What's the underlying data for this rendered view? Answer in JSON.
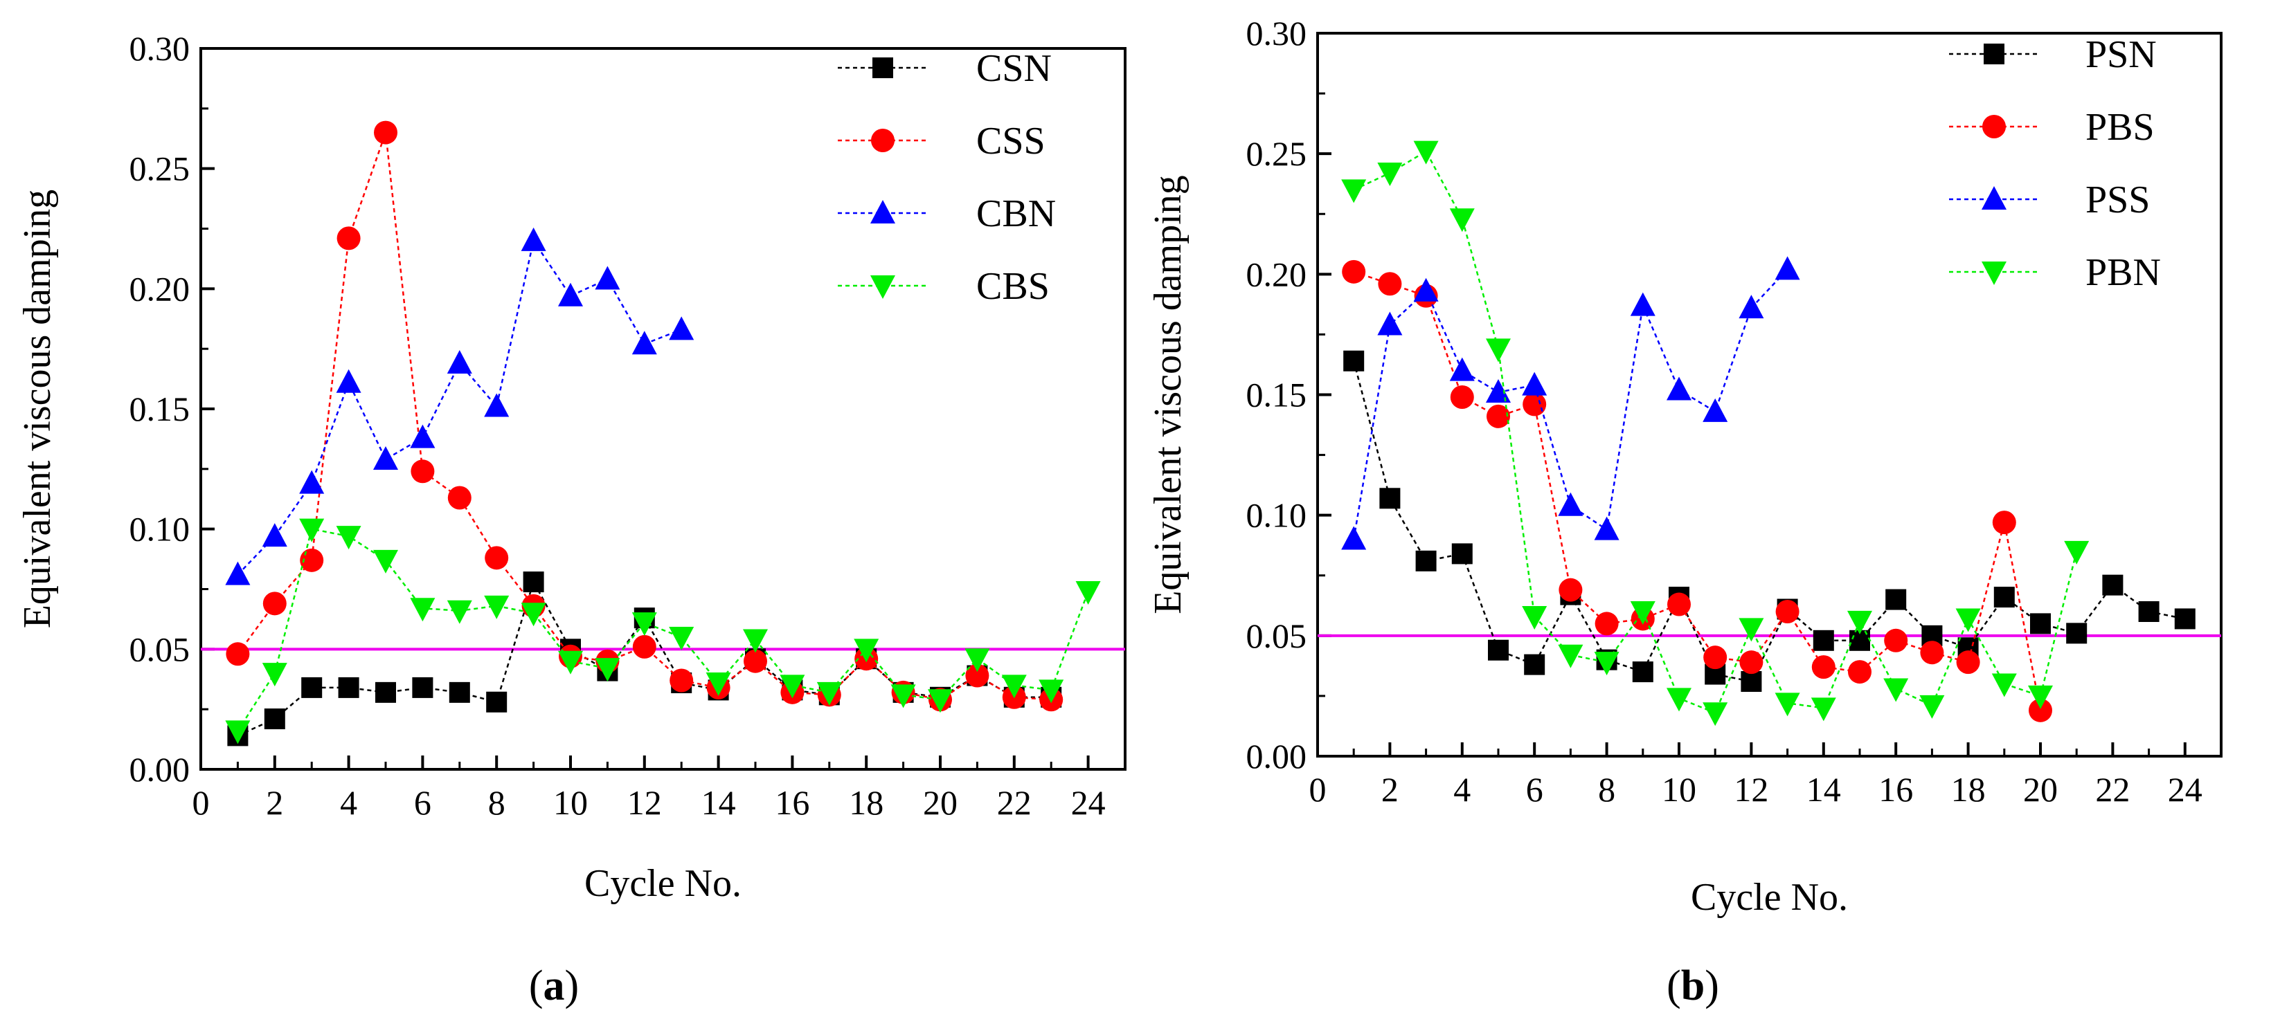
{
  "chart_data": [
    {
      "id": "a",
      "type": "line",
      "caption": {
        "open": "(",
        "letter": "a",
        "close": ")"
      },
      "xlabel": "Cycle No.",
      "ylabel": "Equivalent viscous damping",
      "xlim": [
        0,
        25
      ],
      "ylim": [
        0,
        0.3
      ],
      "xticks": [
        "0",
        "2",
        "4",
        "6",
        "8",
        "10",
        "12",
        "14",
        "16",
        "18",
        "20",
        "22",
        "24"
      ],
      "yticks": [
        "0.00",
        "0.05",
        "0.10",
        "0.15",
        "0.20",
        "0.25",
        "0.30"
      ],
      "reference_line": {
        "y": 0.05,
        "color": "#ee00ee"
      },
      "legend_position": "top-right",
      "series": [
        {
          "name": "CSN",
          "color": "#000000",
          "marker": "square",
          "x": [
            1,
            2,
            3,
            4,
            5,
            6,
            7,
            8,
            9,
            10,
            11,
            12,
            13,
            14,
            15,
            16,
            17,
            18,
            19,
            20,
            21,
            22,
            23
          ],
          "y": [
            0.014,
            0.021,
            0.034,
            0.034,
            0.032,
            0.034,
            0.032,
            0.028,
            0.078,
            0.05,
            0.041,
            0.063,
            0.036,
            0.033,
            0.046,
            0.033,
            0.031,
            0.046,
            0.032,
            0.03,
            0.039,
            0.03,
            0.03
          ]
        },
        {
          "name": "CSS",
          "color": "#ff0000",
          "marker": "circle",
          "x": [
            1,
            2,
            3,
            4,
            5,
            6,
            7,
            8,
            9,
            10,
            11,
            12,
            13,
            14,
            15,
            16,
            17,
            18,
            19,
            20,
            21,
            22,
            23
          ],
          "y": [
            0.048,
            0.069,
            0.087,
            0.221,
            0.265,
            0.124,
            0.113,
            0.088,
            0.068,
            0.047,
            0.045,
            0.051,
            0.037,
            0.034,
            0.045,
            0.032,
            0.031,
            0.046,
            0.032,
            0.029,
            0.039,
            0.03,
            0.029
          ]
        },
        {
          "name": "CBN",
          "color": "#0000ff",
          "marker": "triangle-up",
          "x": [
            1,
            2,
            3,
            4,
            5,
            6,
            7,
            8,
            9,
            10,
            11,
            12,
            13
          ],
          "y": [
            0.081,
            0.097,
            0.119,
            0.161,
            0.129,
            0.138,
            0.169,
            0.151,
            0.22,
            0.197,
            0.204,
            0.177,
            0.183
          ]
        },
        {
          "name": "CBS",
          "color": "#00ee00",
          "marker": "triangle-down",
          "x": [
            1,
            2,
            3,
            4,
            5,
            6,
            7,
            8,
            9,
            10,
            11,
            12,
            13,
            14,
            15,
            16,
            17,
            18,
            19,
            20,
            21,
            22,
            23,
            24
          ],
          "y": [
            0.016,
            0.04,
            0.1,
            0.097,
            0.087,
            0.067,
            0.066,
            0.068,
            0.065,
            0.045,
            0.042,
            0.061,
            0.055,
            0.036,
            0.054,
            0.035,
            0.032,
            0.05,
            0.031,
            0.029,
            0.046,
            0.035,
            0.033,
            0.074
          ]
        }
      ]
    },
    {
      "id": "b",
      "type": "line",
      "caption": {
        "open": "(",
        "letter": "b",
        "close": ")"
      },
      "xlabel": "Cycle No.",
      "ylabel": "Equivalent viscous damping",
      "xlim": [
        0,
        25
      ],
      "ylim": [
        0,
        0.3
      ],
      "xticks": [
        "0",
        "2",
        "4",
        "6",
        "8",
        "10",
        "12",
        "14",
        "16",
        "18",
        "20",
        "22",
        "24"
      ],
      "yticks": [
        "0.00",
        "0.05",
        "0.10",
        "0.15",
        "0.20",
        "0.25",
        "0.30"
      ],
      "reference_line": {
        "y": 0.05,
        "color": "#ee00ee"
      },
      "legend_position": "top-right",
      "series": [
        {
          "name": "PSN",
          "color": "#000000",
          "marker": "square",
          "x": [
            1,
            2,
            3,
            4,
            5,
            6,
            7,
            8,
            9,
            10,
            11,
            12,
            13,
            14,
            15,
            16,
            17,
            18,
            19,
            20,
            21,
            22,
            23,
            24
          ],
          "y": [
            0.164,
            0.107,
            0.081,
            0.084,
            0.044,
            0.038,
            0.067,
            0.04,
            0.035,
            0.066,
            0.034,
            0.031,
            0.061,
            0.048,
            0.048,
            0.065,
            0.05,
            0.045,
            0.066,
            0.055,
            0.051,
            0.071,
            0.06,
            0.057
          ]
        },
        {
          "name": "PBS",
          "color": "#ff0000",
          "marker": "circle",
          "x": [
            1,
            2,
            3,
            4,
            5,
            6,
            7,
            8,
            9,
            10,
            11,
            12,
            13,
            14,
            15,
            16,
            17,
            18,
            19,
            20
          ],
          "y": [
            0.201,
            0.196,
            0.191,
            0.149,
            0.141,
            0.146,
            0.069,
            0.055,
            0.057,
            0.063,
            0.041,
            0.039,
            0.06,
            0.037,
            0.035,
            0.048,
            0.043,
            0.039,
            0.097,
            0.019
          ]
        },
        {
          "name": "PSS",
          "color": "#0000ff",
          "marker": "triangle-up",
          "x": [
            1,
            2,
            3,
            4,
            5,
            6,
            7,
            8,
            9,
            10,
            11,
            12,
            13
          ],
          "y": [
            0.09,
            0.179,
            0.193,
            0.16,
            0.151,
            0.154,
            0.104,
            0.094,
            0.187,
            0.152,
            0.143,
            0.186,
            0.202
          ]
        },
        {
          "name": "PBN",
          "color": "#00ee00",
          "marker": "triangle-down",
          "x": [
            1,
            2,
            3,
            4,
            5,
            6,
            7,
            8,
            9,
            10,
            11,
            12,
            13,
            14,
            15,
            16,
            17,
            18,
            19,
            20,
            21
          ],
          "y": [
            0.235,
            0.242,
            0.251,
            0.223,
            0.169,
            0.058,
            0.042,
            0.039,
            0.06,
            0.024,
            0.018,
            0.053,
            0.022,
            0.02,
            0.056,
            0.028,
            0.021,
            0.057,
            0.03,
            0.025,
            0.085
          ]
        }
      ]
    }
  ]
}
